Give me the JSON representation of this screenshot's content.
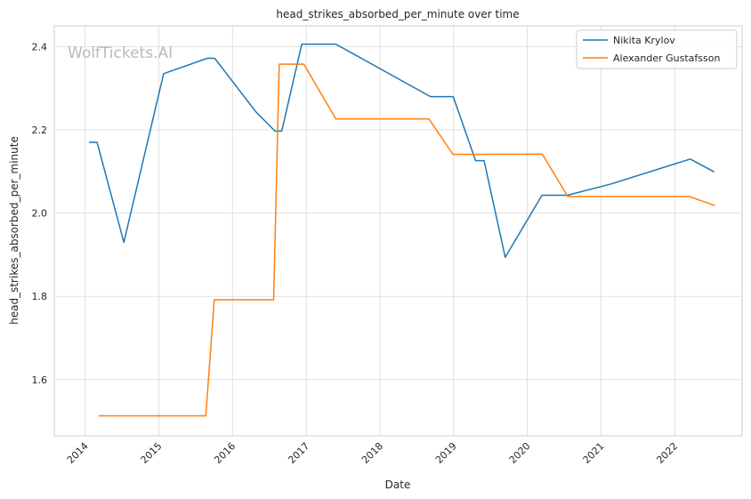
{
  "chart_data": {
    "type": "line",
    "title": "head_strikes_absorbed_per_minute over time",
    "xlabel": "Date",
    "ylabel": "head_strikes_absorbed_per_minute",
    "watermark": "WolfTickets.AI",
    "xlim": [
      "2013-08-01",
      "2022-12-01"
    ],
    "ylim": [
      1.465,
      2.45
    ],
    "x_ticks": [
      "2014-01-01",
      "2015-01-01",
      "2016-01-01",
      "2017-01-01",
      "2018-01-01",
      "2019-01-01",
      "2020-01-01",
      "2021-01-01",
      "2022-01-01"
    ],
    "x_tick_labels": [
      "2014",
      "2015",
      "2016",
      "2017",
      "2018",
      "2019",
      "2020",
      "2021",
      "2022"
    ],
    "y_ticks": [
      1.6,
      1.8,
      2.0,
      2.2,
      2.4
    ],
    "y_tick_labels": [
      "1.6",
      "1.8",
      "2.0",
      "2.2",
      "2.4"
    ],
    "grid": true,
    "legend_position": "top-right",
    "series": [
      {
        "name": "Nikita Krylov",
        "color": "#1f77b4",
        "points": [
          {
            "x": "2014-01-20",
            "y": 2.17
          },
          {
            "x": "2014-03-01",
            "y": 2.17
          },
          {
            "x": "2014-07-12",
            "y": 1.93
          },
          {
            "x": "2015-01-25",
            "y": 2.335
          },
          {
            "x": "2015-08-30",
            "y": 2.372
          },
          {
            "x": "2015-10-05",
            "y": 2.372
          },
          {
            "x": "2016-04-25",
            "y": 2.244
          },
          {
            "x": "2016-07-30",
            "y": 2.197
          },
          {
            "x": "2016-09-01",
            "y": 2.197
          },
          {
            "x": "2016-12-10",
            "y": 2.406
          },
          {
            "x": "2017-05-27",
            "y": 2.406
          },
          {
            "x": "2018-09-08",
            "y": 2.28
          },
          {
            "x": "2018-12-30",
            "y": 2.28
          },
          {
            "x": "2019-04-20",
            "y": 2.126
          },
          {
            "x": "2019-06-01",
            "y": 2.126
          },
          {
            "x": "2019-09-14",
            "y": 1.894
          },
          {
            "x": "2020-03-14",
            "y": 2.043
          },
          {
            "x": "2020-07-18",
            "y": 2.043
          },
          {
            "x": "2021-02-20",
            "y": 2.07
          },
          {
            "x": "2022-03-19",
            "y": 2.13
          },
          {
            "x": "2022-07-16",
            "y": 2.099
          }
        ]
      },
      {
        "name": "Alexander Gustafsson",
        "color": "#ff7f0e",
        "points": [
          {
            "x": "2014-03-08",
            "y": 1.513
          },
          {
            "x": "2015-08-22",
            "y": 1.513
          },
          {
            "x": "2015-10-03",
            "y": 1.792
          },
          {
            "x": "2016-07-23",
            "y": 1.792
          },
          {
            "x": "2016-08-20",
            "y": 2.358
          },
          {
            "x": "2016-12-20",
            "y": 2.358
          },
          {
            "x": "2017-05-28",
            "y": 2.226
          },
          {
            "x": "2018-09-01",
            "y": 2.226
          },
          {
            "x": "2018-12-29",
            "y": 2.141
          },
          {
            "x": "2020-03-16",
            "y": 2.142
          },
          {
            "x": "2020-07-20",
            "y": 2.04
          },
          {
            "x": "2022-03-15",
            "y": 2.04
          },
          {
            "x": "2022-07-20",
            "y": 2.018
          }
        ]
      }
    ]
  }
}
